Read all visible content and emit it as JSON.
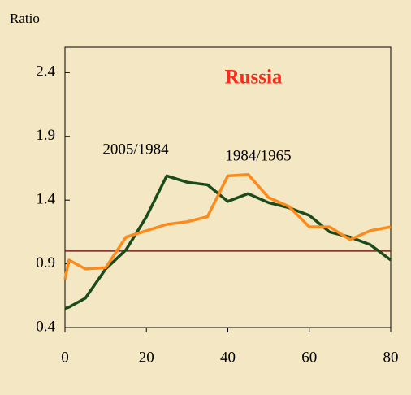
{
  "chart_data": {
    "type": "line",
    "title": "Russia",
    "ylabel": "Ratio",
    "x": [
      0,
      1,
      5,
      10,
      15,
      20,
      25,
      30,
      35,
      40,
      45,
      50,
      55,
      60,
      65,
      70,
      75,
      80
    ],
    "series": [
      {
        "name": "2005/1984",
        "color": "#1b4a1b",
        "values": [
          0.55,
          0.56,
          0.63,
          0.86,
          1.01,
          1.27,
          1.59,
          1.54,
          1.52,
          1.39,
          1.45,
          1.38,
          1.34,
          1.28,
          1.15,
          1.11,
          1.05,
          0.93
        ]
      },
      {
        "name": "1984/1965",
        "color": "#ff8a1c",
        "values": [
          0.78,
          0.93,
          0.86,
          0.87,
          1.11,
          1.16,
          1.21,
          1.23,
          1.27,
          1.59,
          1.6,
          1.42,
          1.35,
          1.19,
          1.19,
          1.09,
          1.16,
          1.19
        ]
      }
    ],
    "reference_line": 1.0,
    "reference_color": "#7a1f1f",
    "xlim": [
      0,
      80
    ],
    "xticks": [
      0,
      20,
      40,
      60,
      80
    ],
    "ylim": [
      0.4,
      2.6
    ],
    "yticks": [
      0.4,
      0.9,
      1.4,
      1.9,
      2.4
    ],
    "grid": false
  }
}
